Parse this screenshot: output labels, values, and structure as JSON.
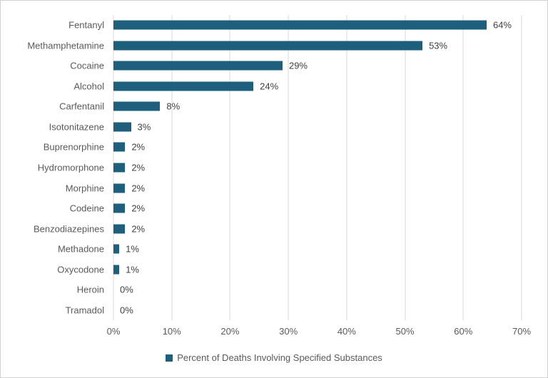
{
  "window": {
    "background": "#ffffff",
    "frame_border_color": "#d0d0d0"
  },
  "chart_data": {
    "type": "bar",
    "orientation": "horizontal",
    "title": "",
    "xlabel": "",
    "ylabel": "",
    "categories": [
      "Fentanyl",
      "Methamphetamine",
      "Cocaine",
      "Alcohol",
      "Carfentanil",
      "Isotonitazene",
      "Buprenorphine",
      "Hydromorphone",
      "Morphine",
      "Codeine",
      "Benzodiazepines",
      "Methadone",
      "Oxycodone",
      "Heroin",
      "Tramadol"
    ],
    "values": [
      64,
      53,
      29,
      24,
      8,
      3,
      2,
      2,
      2,
      2,
      2,
      1,
      1,
      0,
      0
    ],
    "value_labels": [
      "64%",
      "53%",
      "29%",
      "24%",
      "8%",
      "3%",
      "2%",
      "2%",
      "2%",
      "2%",
      "2%",
      "1%",
      "1%",
      "0%",
      "0%"
    ],
    "x_ticks": [
      "0%",
      "10%",
      "20%",
      "30%",
      "40%",
      "50%",
      "60%",
      "70%"
    ],
    "xlim": [
      0,
      70
    ],
    "grid": true,
    "legend": "Percent of Deaths Involving Specified Substances",
    "legend_position": "bottom",
    "bar_color": "#1e5f7e",
    "grid_color": "#d9d9d9",
    "label_color": "#595959",
    "data_label_color": "#404040"
  }
}
